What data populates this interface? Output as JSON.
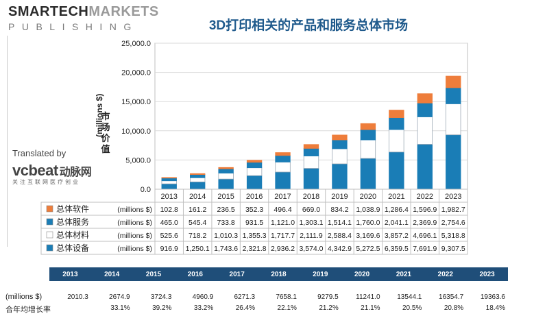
{
  "logo": {
    "line1a": "SMARTECH",
    "line1b": "MARKETS",
    "line2": "PUBLISHING"
  },
  "title": "3D打印相关的产品和服务总体市场",
  "translated_by": "Translated by",
  "translator_brand": "vcbeat",
  "translator_cn": "动脉网",
  "translator_sub": "关注互联网医疗创业",
  "ylabel_en": "(millions $)",
  "ylabel_cn": "市场价值",
  "units": "(millions $)",
  "colors": {
    "software": "#ee7d3b",
    "services": "#1a7db6",
    "materials": "#ffffff",
    "equipment": "#1a7db6",
    "bottom_bar": "#1f4e79"
  },
  "chart_data": {
    "type": "bar",
    "stacked": true,
    "categories": [
      "2013",
      "2014",
      "2015",
      "2016",
      "2017",
      "2018",
      "2019",
      "2020",
      "2021",
      "2022",
      "2023"
    ],
    "ylim": [
      0,
      25000
    ],
    "yticks": [
      "0.0",
      "5,000.0",
      "10,000.0",
      "15,000.0",
      "20,000.0",
      "25,000.0"
    ],
    "series": [
      {
        "name": "总体设备",
        "unit": "(millions $)",
        "values": [
          916.9,
          1250.1,
          1743.6,
          2321.8,
          2936.2,
          3574.0,
          4342.9,
          5272.5,
          6359.5,
          7691.9,
          9307.5
        ],
        "labels": [
          "916.9",
          "1,250.1",
          "1,743.6",
          "2,321.8",
          "2,936.2",
          "3,574.0",
          "4,342.9",
          "5,272.5",
          "6,359.5",
          "7,691.9",
          "9,307.5"
        ]
      },
      {
        "name": "总体材料",
        "unit": "(millions $)",
        "values": [
          525.6,
          718.2,
          1010.3,
          1355.3,
          1717.7,
          2111.9,
          2588.4,
          3169.6,
          3857.2,
          4696.1,
          5318.8
        ],
        "labels": [
          "525.6",
          "718.2",
          "1,010.3",
          "1,355.3",
          "1,717.7",
          "2,111.9",
          "2,588.4",
          "3,169.6",
          "3,857.2",
          "4,696.1",
          "5,318.8"
        ]
      },
      {
        "name": "总体服务",
        "unit": "(millions $)",
        "values": [
          465.0,
          545.4,
          733.8,
          931.5,
          1121.0,
          1303.1,
          1514.1,
          1760.0,
          2041.1,
          2369.9,
          2754.6
        ],
        "labels": [
          "465.0",
          "545.4",
          "733.8",
          "931.5",
          "1,121.0",
          "1,303.1",
          "1,514.1",
          "1,760.0",
          "2,041.1",
          "2,369.9",
          "2,754.6"
        ]
      },
      {
        "name": "总体软件",
        "unit": "(millions $)",
        "values": [
          102.8,
          161.2,
          236.5,
          352.3,
          496.4,
          669.0,
          834.2,
          1038.9,
          1286.4,
          1596.9,
          1982.7
        ],
        "labels": [
          "102.8",
          "161.2",
          "236.5",
          "352.3",
          "496.4",
          "669.0",
          "834.2",
          "1,038.9",
          "1,286.4",
          "1,596.9",
          "1,982.7"
        ]
      }
    ],
    "table_order": [
      "总体软件",
      "总体服务",
      "总体材料",
      "总体设备"
    ]
  },
  "summary": {
    "row_total_label": "(millions $)",
    "row_cagr_label": "合年均增长率",
    "years": [
      "2013",
      "2014",
      "2015",
      "2016",
      "2017",
      "2018",
      "2019",
      "2020",
      "2021",
      "2022",
      "2023"
    ],
    "totals": [
      "2010.3",
      "2674.9",
      "3724.3",
      "4960.9",
      "6271.3",
      "7658.1",
      "9279.5",
      "11241.0",
      "13544.1",
      "16354.7",
      "19363.6"
    ],
    "cagr": [
      "",
      "33.1%",
      "39.2%",
      "33.2%",
      "26.4%",
      "22.1%",
      "21.2%",
      "21.1%",
      "20.5%",
      "20.8%",
      "18.4%"
    ]
  }
}
